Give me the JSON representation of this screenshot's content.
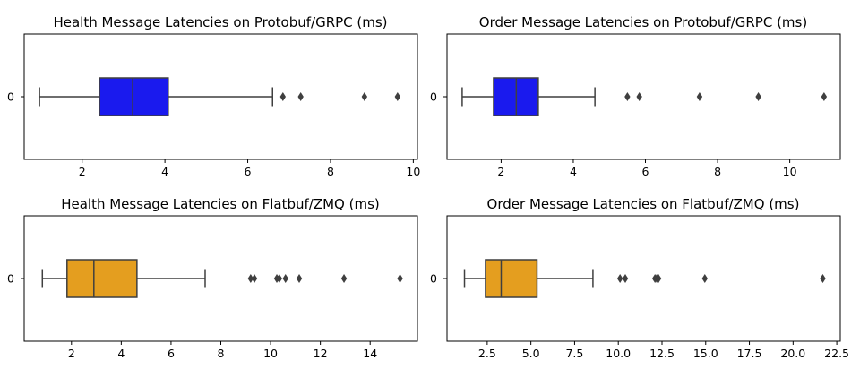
{
  "chart_data": [
    {
      "type": "box",
      "title": "Health Message Latencies on Protobuf/GRPC (ms)",
      "category_label": "0",
      "color": "#1a1aee",
      "xlim": [
        0.6,
        10.1
      ],
      "xticks": [
        2,
        4,
        6,
        8,
        10
      ],
      "tick_labels": [
        "2",
        "4",
        "6",
        "8",
        "10"
      ],
      "box": {
        "whisker_low": 0.97,
        "q1": 2.42,
        "median": 3.22,
        "q3": 4.08,
        "whisker_high": 6.6
      },
      "outliers": [
        6.85,
        7.28,
        8.82,
        9.62
      ]
    },
    {
      "type": "box",
      "title": "Order Message Latencies on Protobuf/GRPC (ms)",
      "category_label": "0",
      "color": "#1a1aee",
      "xlim": [
        0.5,
        11.4
      ],
      "xticks": [
        2,
        4,
        6,
        8,
        10
      ],
      "tick_labels": [
        "2",
        "4",
        "6",
        "8",
        "10"
      ],
      "box": {
        "whisker_low": 0.92,
        "q1": 1.79,
        "median": 2.42,
        "q3": 3.03,
        "whisker_high": 4.6
      },
      "outliers": [
        5.5,
        5.83,
        7.5,
        9.13,
        10.95
      ]
    },
    {
      "type": "box",
      "title": "Health Message Latencies on Flatbuf/ZMQ (ms)",
      "category_label": "0",
      "color": "#e49e1f",
      "xlim": [
        0.1,
        15.9
      ],
      "xticks": [
        2,
        4,
        6,
        8,
        10,
        12,
        14
      ],
      "tick_labels": [
        "2",
        "4",
        "6",
        "8",
        "10",
        "12",
        "14"
      ],
      "box": {
        "whisker_low": 0.83,
        "q1": 1.82,
        "median": 2.9,
        "q3": 4.63,
        "whisker_high": 7.37
      },
      "outliers": [
        9.2,
        9.35,
        10.25,
        10.35,
        10.6,
        11.15,
        12.95,
        15.2
      ]
    },
    {
      "type": "box",
      "title": "Order Message Latencies on Flatbuf/ZMQ (ms)",
      "category_label": "0",
      "color": "#e49e1f",
      "xlim": [
        0.2,
        22.7
      ],
      "xticks": [
        2.5,
        5,
        7.5,
        10,
        12.5,
        15,
        17.5,
        20,
        22.5
      ],
      "tick_labels": [
        "2.5",
        "5.0",
        "7.5",
        "10.0",
        "12.5",
        "15.0",
        "17.5",
        "20.0",
        "22.5"
      ],
      "box": {
        "whisker_low": 1.2,
        "q1": 2.4,
        "median": 3.3,
        "q3": 5.35,
        "whisker_high": 8.55
      },
      "outliers": [
        10.1,
        10.4,
        12.1,
        12.2,
        12.3,
        14.95,
        21.7
      ]
    }
  ]
}
